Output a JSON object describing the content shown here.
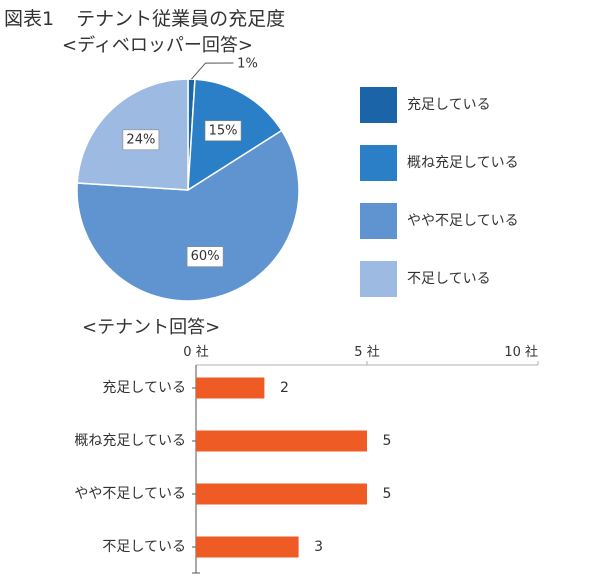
{
  "figure_title": {
    "label": "図表1",
    "text": "テナント従業員の充足度"
  },
  "chart_data": [
    {
      "type": "pie",
      "title": "<ディベロッパー回答>",
      "slices": [
        {
          "label": "充足している",
          "value": 1,
          "value_label": "1%",
          "color": "#1b64a8"
        },
        {
          "label": "概ね充足している",
          "value": 15,
          "value_label": "15%",
          "color": "#2a7fc6"
        },
        {
          "label": "やや不足している",
          "value": 60,
          "value_label": "60%",
          "color": "#5f94d0"
        },
        {
          "label": "不足している",
          "value": 24,
          "value_label": "24%",
          "color": "#9dbbe2"
        }
      ],
      "legend_placement": "right"
    },
    {
      "type": "bar",
      "orientation": "horizontal",
      "title": "<テナント回答>",
      "categories": [
        "充足している",
        "概ね充足している",
        "やや不足している",
        "不足している"
      ],
      "values": [
        2,
        5,
        5,
        3
      ],
      "value_labels": [
        "2",
        "5",
        "5",
        "3"
      ],
      "xlim": [
        0,
        10
      ],
      "xticks": [
        0,
        5,
        10
      ],
      "xtick_labels": [
        "0 社",
        "5 社",
        "10 社"
      ],
      "bar_color": "#ef5b25",
      "grid": true
    }
  ]
}
